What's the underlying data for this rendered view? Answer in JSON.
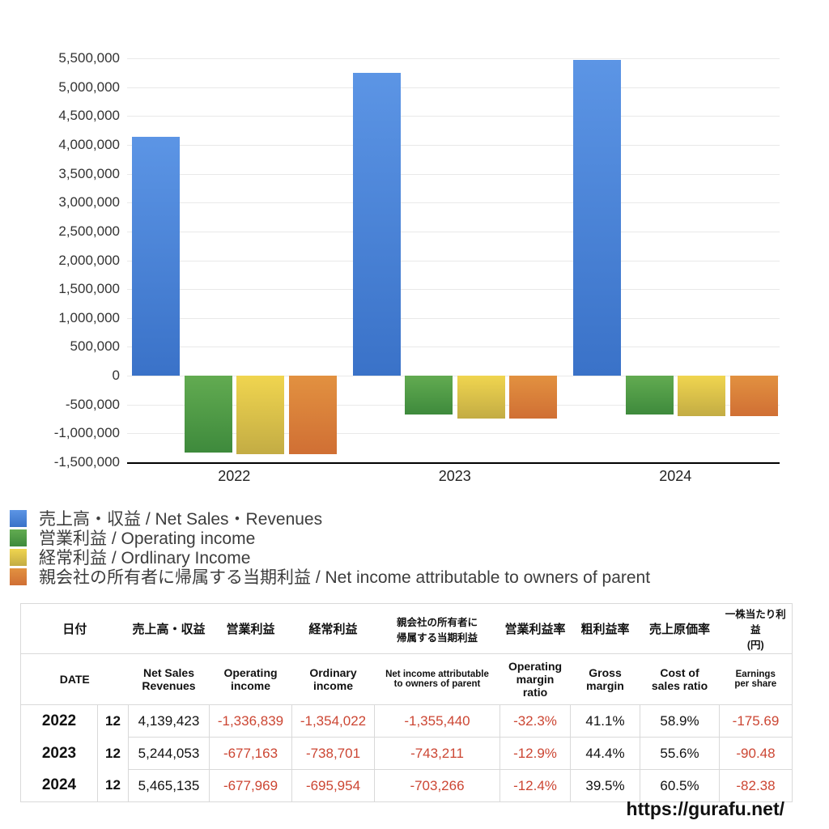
{
  "chart_data": {
    "type": "bar",
    "title": "",
    "categories": [
      "2022",
      "2023",
      "2024"
    ],
    "series": [
      {
        "id": "net-sales",
        "legend": "売上高・収益 / Net Sales・Revenues",
        "color_top": "#5c95e5",
        "color_bottom": "#3a72c8",
        "values": [
          4139423,
          5244053,
          5465135
        ]
      },
      {
        "id": "operating-income",
        "legend": "営業利益 / Operating income",
        "color_top": "#62ab51",
        "color_bottom": "#3e8a3c",
        "values": [
          -1336839,
          -677163,
          -677969
        ]
      },
      {
        "id": "ordinary-income",
        "legend": "経常利益 / Ordlinary Income",
        "color_top": "#f0d54f",
        "color_bottom": "#c3ac44",
        "values": [
          -1354022,
          -738701,
          -695954
        ]
      },
      {
        "id": "net-income-parent",
        "legend": "親会社の所有者に帰属する当期利益 / Net income attributable to owners of parent",
        "color_top": "#e29140",
        "color_bottom": "#d06f34",
        "values": [
          -1355440,
          -743211,
          -703266
        ]
      }
    ],
    "ylim": [
      -1500000,
      5500000
    ],
    "y_tick_step": 500000,
    "y_tick_labels": [
      "5,500,000",
      "5,000,000",
      "4,500,000",
      "4,000,000",
      "3,500,000",
      "3,000,000",
      "2,500,000",
      "2,000,000",
      "1,500,000",
      "1,000,000",
      "500,000",
      "0",
      "-500,000",
      "-1,000,000",
      "-1,500,000"
    ],
    "grid": true,
    "legend_position": "bottom-left"
  },
  "table": {
    "columns_ja": [
      "日付",
      "売上高・収益",
      "営業利益",
      "経常利益",
      "親会社の所有者に\n帰属する当期利益",
      "営業利益率",
      "粗利益率",
      "売上原価率",
      "一株当たり利益\n(円)"
    ],
    "columns_en": [
      "DATE",
      "Net Sales\nRevenues",
      "Operating\nincome",
      "Ordinary\nincome",
      "Net income attributable\nto owners of parent",
      "Operating\nmargin\nratio",
      "Gross\nmargin",
      "Cost of\nsales ratio",
      "Earnings\nper share"
    ],
    "rows": [
      {
        "year": "2022",
        "month": "12",
        "values": [
          "4,139,423",
          "-1,336,839",
          "-1,354,022",
          "-1,355,440",
          "-32.3%",
          "41.1%",
          "58.9%",
          "-175.69"
        ]
      },
      {
        "year": "2023",
        "month": "12",
        "values": [
          "5,244,053",
          "-677,163",
          "-738,701",
          "-743,211",
          "-12.9%",
          "44.4%",
          "55.6%",
          "-90.48"
        ]
      },
      {
        "year": "2024",
        "month": "12",
        "values": [
          "5,465,135",
          "-677,969",
          "-695,954",
          "-703,266",
          "-12.4%",
          "39.5%",
          "60.5%",
          "-82.38"
        ]
      }
    ],
    "negative_color": "#cc4633"
  },
  "footer": {
    "url": "https://gurafu.net/"
  }
}
